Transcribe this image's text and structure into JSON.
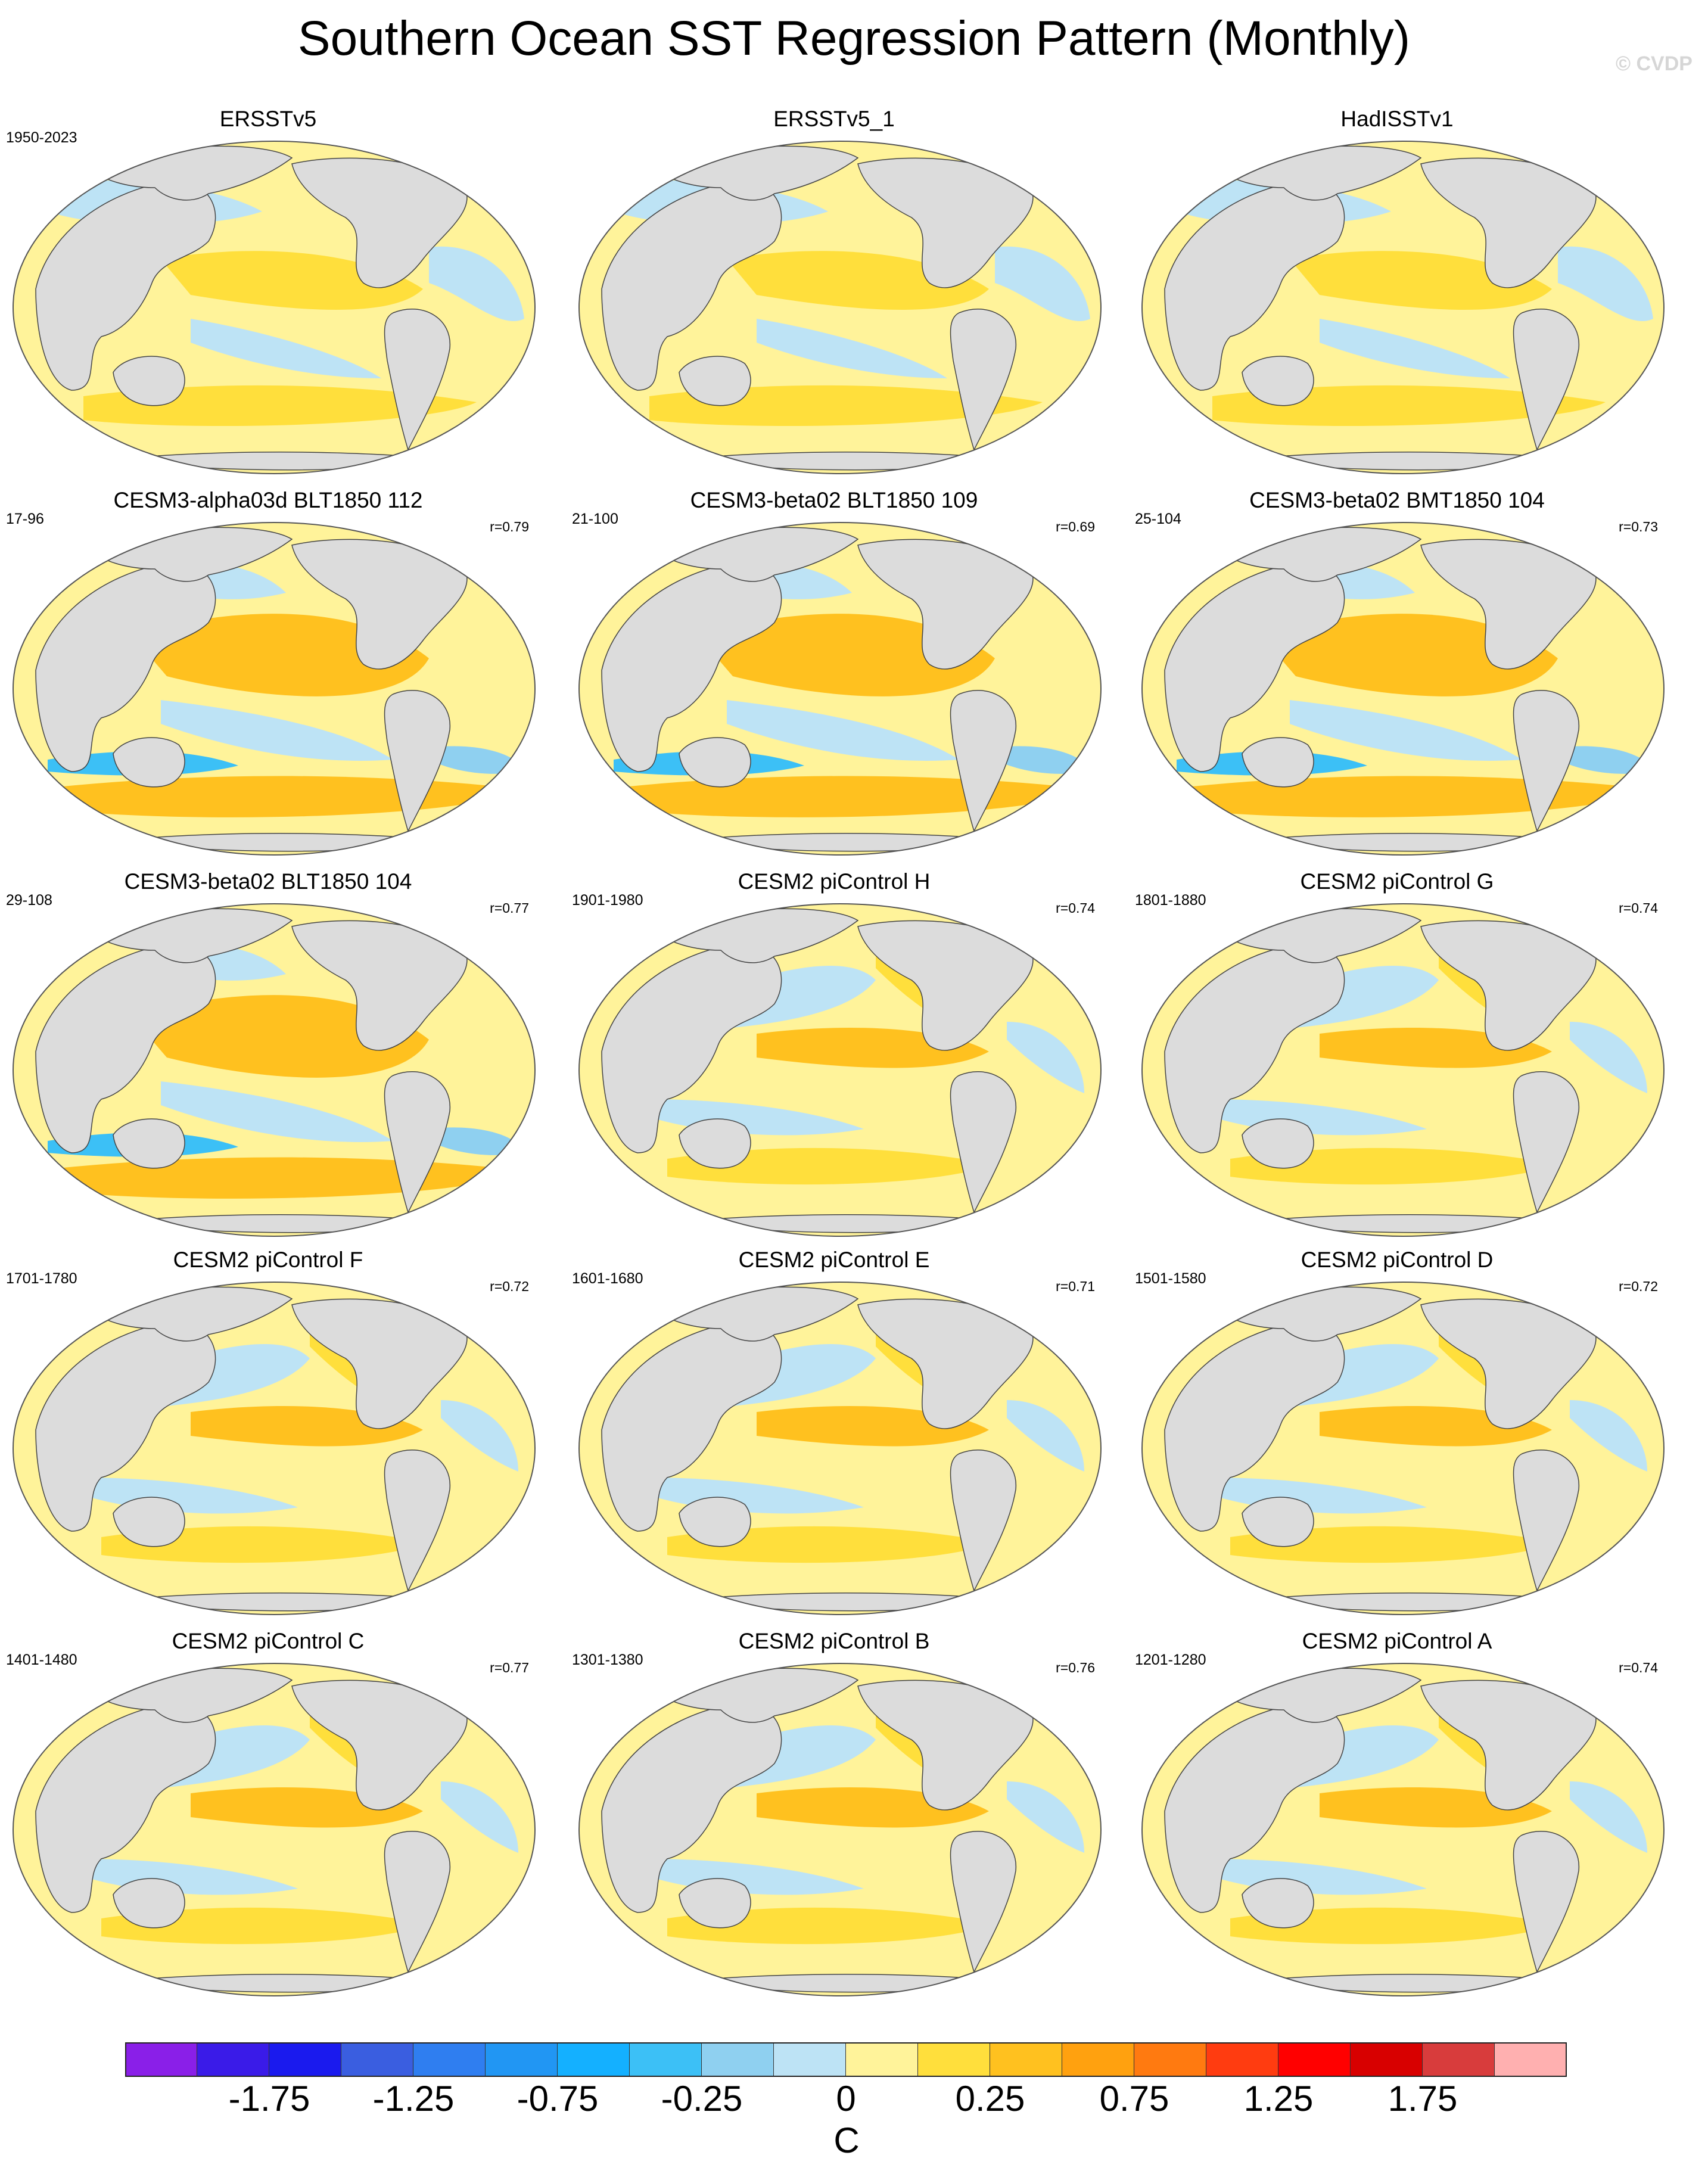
{
  "title": "Southern Ocean SST Regression Pattern (Monthly)",
  "watermark": "© CVDP",
  "colors": {
    "land": "#dcdcdc",
    "coast": "#444444",
    "levels": [
      "#8a1fe8",
      "#3a1be8",
      "#1a1aee",
      "#3a5ee0",
      "#2f7ef0",
      "#2196f3",
      "#14b0ff",
      "#3cc0f6",
      "#8fd0f0",
      "#bde3f5",
      "#fff39a",
      "#ffdf3c",
      "#ffc11f",
      "#ffa10f",
      "#ff7a10",
      "#ff3c10",
      "#ff0000",
      "#d80000",
      "#d83c3c",
      "#ffb0b0"
    ]
  },
  "colorbar": {
    "labels": [
      "-1.75",
      "-1.25",
      "-0.75",
      "-0.25",
      "0",
      "0.25",
      "0.75",
      "1.25",
      "1.75"
    ],
    "unit": "C"
  },
  "panels": [
    {
      "title": "ERSSTv5",
      "years": "1950-2023",
      "corr": "",
      "pattern": "obs"
    },
    {
      "title": "ERSSTv5_1",
      "years": "",
      "corr": "",
      "pattern": "obs"
    },
    {
      "title": "HadISSTv1",
      "years": "",
      "corr": "",
      "pattern": "obs"
    },
    {
      "title": "CESM3-alpha03d BLT1850 112",
      "years": "17-96",
      "corr": "r=0.79",
      "pattern": "cesm3"
    },
    {
      "title": "CESM3-beta02 BLT1850 109",
      "years": "21-100",
      "corr": "r=0.69",
      "pattern": "cesm3"
    },
    {
      "title": "CESM3-beta02 BMT1850 104",
      "years": "25-104",
      "corr": "r=0.73",
      "pattern": "cesm3"
    },
    {
      "title": "CESM3-beta02 BLT1850 104",
      "years": "29-108",
      "corr": "r=0.77",
      "pattern": "cesm3"
    },
    {
      "title": "CESM2 piControl H",
      "years": "1901-1980",
      "corr": "r=0.74",
      "pattern": "cesm2"
    },
    {
      "title": "CESM2 piControl G",
      "years": "1801-1880",
      "corr": "r=0.74",
      "pattern": "cesm2"
    },
    {
      "title": "CESM2 piControl F",
      "years": "1701-1780",
      "corr": "r=0.72",
      "pattern": "cesm2"
    },
    {
      "title": "CESM2 piControl E",
      "years": "1601-1680",
      "corr": "r=0.71",
      "pattern": "cesm2"
    },
    {
      "title": "CESM2 piControl D",
      "years": "1501-1580",
      "corr": "r=0.72",
      "pattern": "cesm2"
    },
    {
      "title": "CESM2 piControl C",
      "years": "1401-1480",
      "corr": "r=0.77",
      "pattern": "cesm2"
    },
    {
      "title": "CESM2 piControl B",
      "years": "1301-1380",
      "corr": "r=0.76",
      "pattern": "cesm2"
    },
    {
      "title": "CESM2 piControl A",
      "years": "1201-1280",
      "corr": "r=0.74",
      "pattern": "cesm2"
    }
  ]
}
